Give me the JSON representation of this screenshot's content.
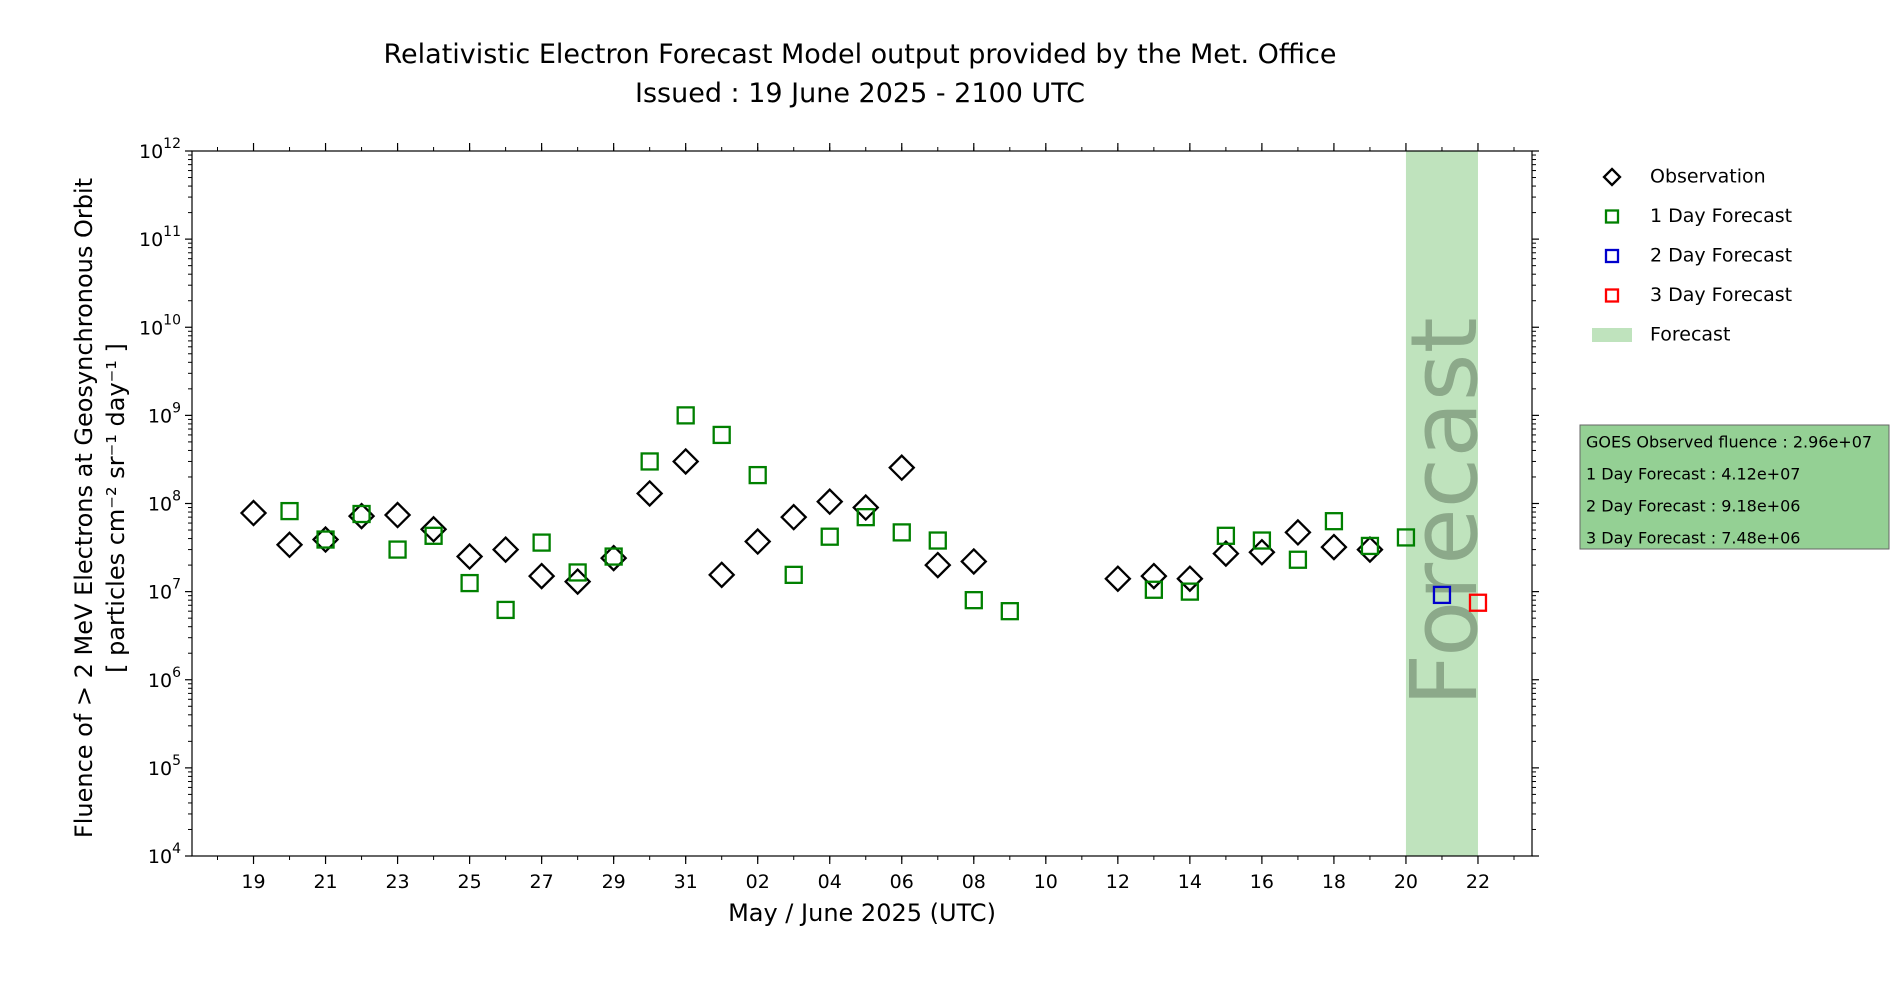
{
  "chart_data": {
    "type": "scatter",
    "title": "Relativistic Electron Forecast Model output provided by the Met. Office",
    "subtitle": "Issued : 19 June 2025 - 2100 UTC",
    "xlabel": "May / June 2025 (UTC)",
    "ylabel_line1": "Fluence of > 2 MeV Electrons at Geosynchronous Orbit",
    "ylabel_line2": "[ particles cm⁻² sr⁻¹ day⁻¹ ]",
    "y_scale": "log",
    "ylim": [
      10000,
      1000000000000
    ],
    "xlim": [
      "2025-05-17T07:00",
      "2025-06-23T12:00"
    ],
    "x_tick_labels": [
      {
        "date": "2025-05-19",
        "label": "19"
      },
      {
        "date": "2025-05-21",
        "label": "21"
      },
      {
        "date": "2025-05-23",
        "label": "23"
      },
      {
        "date": "2025-05-25",
        "label": "25"
      },
      {
        "date": "2025-05-27",
        "label": "27"
      },
      {
        "date": "2025-05-29",
        "label": "29"
      },
      {
        "date": "2025-05-31",
        "label": "31"
      },
      {
        "date": "2025-06-02",
        "label": "02"
      },
      {
        "date": "2025-06-04",
        "label": "04"
      },
      {
        "date": "2025-06-06",
        "label": "06"
      },
      {
        "date": "2025-06-08",
        "label": "08"
      },
      {
        "date": "2025-06-10",
        "label": "10"
      },
      {
        "date": "2025-06-12",
        "label": "12"
      },
      {
        "date": "2025-06-14",
        "label": "14"
      },
      {
        "date": "2025-06-16",
        "label": "16"
      },
      {
        "date": "2025-06-18",
        "label": "18"
      },
      {
        "date": "2025-06-20",
        "label": "20"
      },
      {
        "date": "2025-06-22",
        "label": "22"
      }
    ],
    "y_tick_labels": [
      {
        "value": 10000,
        "base": "10",
        "exp": "4"
      },
      {
        "value": 100000,
        "base": "10",
        "exp": "5"
      },
      {
        "value": 1000000,
        "base": "10",
        "exp": "6"
      },
      {
        "value": 10000000,
        "base": "10",
        "exp": "7"
      },
      {
        "value": 100000000,
        "base": "10",
        "exp": "8"
      },
      {
        "value": 1000000000,
        "base": "10",
        "exp": "9"
      },
      {
        "value": 10000000000,
        "base": "10",
        "exp": "10"
      },
      {
        "value": 100000000000,
        "base": "10",
        "exp": "11"
      },
      {
        "value": 1000000000000,
        "base": "10",
        "exp": "12"
      }
    ],
    "forecast_band": {
      "start": "2025-06-20T00:00",
      "end": "2025-06-22T00:00",
      "label": "Forecast",
      "color": "#bfe3bd"
    },
    "series": [
      {
        "name": "Observation",
        "marker": "diamond",
        "color": "#000000",
        "points": [
          {
            "x": "2025-05-19T00:00",
            "y": 78000000
          },
          {
            "x": "2025-05-20T00:00",
            "y": 34000000
          },
          {
            "x": "2025-05-21T00:00",
            "y": 39000000
          },
          {
            "x": "2025-05-22T00:00",
            "y": 72000000
          },
          {
            "x": "2025-05-23T00:00",
            "y": 74000000
          },
          {
            "x": "2025-05-24T00:00",
            "y": 51000000
          },
          {
            "x": "2025-05-25T00:00",
            "y": 25000000
          },
          {
            "x": "2025-05-26T00:00",
            "y": 30000000
          },
          {
            "x": "2025-05-27T00:00",
            "y": 15000000
          },
          {
            "x": "2025-05-28T00:00",
            "y": 13000000
          },
          {
            "x": "2025-05-29T00:00",
            "y": 24000000
          },
          {
            "x": "2025-05-30T00:00",
            "y": 130000000
          },
          {
            "x": "2025-05-31T00:00",
            "y": 300000000
          },
          {
            "x": "2025-06-01T00:00",
            "y": 15500000
          },
          {
            "x": "2025-06-02T00:00",
            "y": 37000000
          },
          {
            "x": "2025-06-03T00:00",
            "y": 70000000
          },
          {
            "x": "2025-06-04T00:00",
            "y": 105000000
          },
          {
            "x": "2025-06-05T00:00",
            "y": 90000000
          },
          {
            "x": "2025-06-06T00:00",
            "y": 255000000
          },
          {
            "x": "2025-06-07T00:00",
            "y": 20000000
          },
          {
            "x": "2025-06-08T00:00",
            "y": 22000000
          },
          {
            "x": "2025-06-12T00:00",
            "y": 14000000
          },
          {
            "x": "2025-06-13T00:00",
            "y": 15000000
          },
          {
            "x": "2025-06-14T00:00",
            "y": 14000000
          },
          {
            "x": "2025-06-15T00:00",
            "y": 27000000
          },
          {
            "x": "2025-06-16T00:00",
            "y": 28000000
          },
          {
            "x": "2025-06-17T00:00",
            "y": 47000000
          },
          {
            "x": "2025-06-18T00:00",
            "y": 32000000
          },
          {
            "x": "2025-06-19T00:00",
            "y": 30000000
          }
        ]
      },
      {
        "name": "1 Day Forecast",
        "marker": "square",
        "color": "#008000",
        "points": [
          {
            "x": "2025-05-20T00:00",
            "y": 82000000
          },
          {
            "x": "2025-05-21T00:00",
            "y": 39000000
          },
          {
            "x": "2025-05-22T00:00",
            "y": 76000000
          },
          {
            "x": "2025-05-23T00:00",
            "y": 30000000
          },
          {
            "x": "2025-05-24T00:00",
            "y": 43000000
          },
          {
            "x": "2025-05-25T00:00",
            "y": 12500000
          },
          {
            "x": "2025-05-26T00:00",
            "y": 6200000
          },
          {
            "x": "2025-05-27T00:00",
            "y": 36000000
          },
          {
            "x": "2025-05-28T00:00",
            "y": 16500000
          },
          {
            "x": "2025-05-29T00:00",
            "y": 25000000
          },
          {
            "x": "2025-05-30T00:00",
            "y": 300000000
          },
          {
            "x": "2025-05-31T00:00",
            "y": 1000000000
          },
          {
            "x": "2025-06-01T00:00",
            "y": 600000000
          },
          {
            "x": "2025-06-02T00:00",
            "y": 210000000
          },
          {
            "x": "2025-06-03T00:00",
            "y": 15500000
          },
          {
            "x": "2025-06-04T00:00",
            "y": 42000000
          },
          {
            "x": "2025-06-05T00:00",
            "y": 70000000
          },
          {
            "x": "2025-06-06T00:00",
            "y": 47000000
          },
          {
            "x": "2025-06-07T00:00",
            "y": 38000000
          },
          {
            "x": "2025-06-08T00:00",
            "y": 8000000
          },
          {
            "x": "2025-06-09T00:00",
            "y": 6000000
          },
          {
            "x": "2025-06-13T00:00",
            "y": 10500000
          },
          {
            "x": "2025-06-14T00:00",
            "y": 10000000
          },
          {
            "x": "2025-06-15T00:00",
            "y": 43000000
          },
          {
            "x": "2025-06-16T00:00",
            "y": 38000000
          },
          {
            "x": "2025-06-17T00:00",
            "y": 23000000
          },
          {
            "x": "2025-06-18T00:00",
            "y": 63000000
          },
          {
            "x": "2025-06-19T00:00",
            "y": 33000000
          },
          {
            "x": "2025-06-20T00:00",
            "y": 41200000
          }
        ]
      },
      {
        "name": "2 Day Forecast",
        "marker": "square",
        "color": "#0000cc",
        "points": [
          {
            "x": "2025-06-21T00:00",
            "y": 9180000
          }
        ]
      },
      {
        "name": "3 Day Forecast",
        "marker": "square",
        "color": "#ff0000",
        "points": [
          {
            "x": "2025-06-22T00:00",
            "y": 7480000
          }
        ]
      }
    ],
    "legend": {
      "placement": "outside-right-top",
      "entries": [
        {
          "label": "Observation",
          "marker": "diamond",
          "color": "#000000"
        },
        {
          "label": "1 Day Forecast",
          "marker": "square",
          "color": "#008000"
        },
        {
          "label": "2 Day Forecast",
          "marker": "square",
          "color": "#0000cc"
        },
        {
          "label": "3 Day Forecast",
          "marker": "square",
          "color": "#ff0000"
        },
        {
          "label": "Forecast",
          "marker": "patch",
          "color": "#bfe3bd"
        }
      ]
    },
    "info_box": {
      "lines": [
        "GOES Observed fluence : 2.96e+07",
        "1 Day Forecast : 4.12e+07",
        "2 Day Forecast : 9.18e+06",
        "3 Day Forecast : 7.48e+06"
      ],
      "background": "#94d094"
    }
  }
}
